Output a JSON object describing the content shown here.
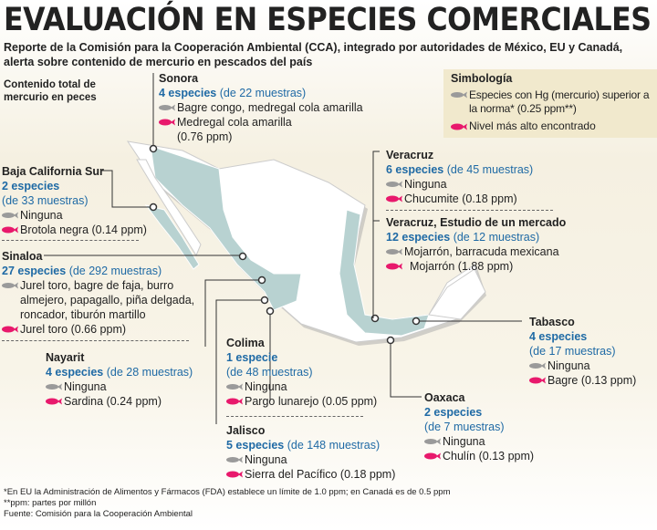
{
  "title": "EVALUACIÓN EN ESPECIES COMERCIALES",
  "subtitle": "Reporte de la Comisión para la Cooperación Ambiental (CCA), integrado por autoridades de México, EU y Canadá, alerta sobre contenido de mercurio en pescados del país",
  "section_label": "Contenido total de mercurio en peces",
  "legend": {
    "title": "Simbología",
    "gray": "Especies con Hg (mercurio) superior a la norma* (0.25 ppm**)",
    "pink": "Nivel más alto encontrado"
  },
  "colors": {
    "blue": "#1f6aa5",
    "pink": "#e8196c",
    "gray": "#9a9a9a",
    "map": "#b8d2d1"
  },
  "regions": {
    "sonora": {
      "name": "Sonora",
      "species": "4 especies",
      "samples": "(de 22 muestras)",
      "above": "Bagre congo, medregal cola amarilla",
      "highest": "Medregal cola amarilla",
      "highest2": "(0.76 ppm)"
    },
    "bcs": {
      "name": "Baja California Sur",
      "species": "2 especies",
      "samples": "(de 33 muestras)",
      "above": "Ninguna",
      "highest": "Brotola negra (0.14 ppm)"
    },
    "sinaloa": {
      "name": "Sinaloa",
      "species": "27 especies",
      "samples": "(de 292 muestras)",
      "above1": "Jurel toro, bagre de faja, burro",
      "above2": "almejero, papagallo, piña delgada,",
      "above3": "roncador, tiburón martillo",
      "highest": "Jurel toro (0.66 ppm)"
    },
    "nayarit": {
      "name": "Nayarit",
      "species": "4 especies",
      "samples": "(de 28 muestras)",
      "above": "Ninguna",
      "highest": "Sardina (0.24 ppm)"
    },
    "colima": {
      "name": "Colima",
      "species": "1 especie",
      "samples": "(de 48 muestras)",
      "above": "Ninguna",
      "highest": "Pargo lunarejo (0.05 ppm)"
    },
    "jalisco": {
      "name": "Jalisco",
      "species": "5 especies",
      "samples": "(de 148 muestras)",
      "above": "Ninguna",
      "highest": "Sierra del Pacífico (0.18 ppm)"
    },
    "veracruz": {
      "name": "Veracruz",
      "species": "6 especies",
      "samples": "(de 45 muestras)",
      "above": "Ninguna",
      "highest": "Chucumite (0.18 ppm)"
    },
    "veracruz_market": {
      "name": "Veracruz, Estudio de un mercado",
      "species": "12 especies",
      "samples": "(de 12 muestras)",
      "above": "Mojarrón, barracuda mexicana",
      "highest": "Mojarrón (1.88 ppm)"
    },
    "tabasco": {
      "name": "Tabasco",
      "species": "4 especies",
      "samples": "(de 17 muestras)",
      "above": "Ninguna",
      "highest": "Bagre (0.13 ppm)"
    },
    "oaxaca": {
      "name": "Oaxaca",
      "species": "2 especies",
      "samples": "(de 7 muestras)",
      "above": "Ninguna",
      "highest": "Chulín (0.13 ppm)"
    }
  },
  "footnotes": [
    "*En EU la Administración de Alimentos y Fármacos (FDA) establece un límite de 1.0 ppm; en Canadá es de 0.5 ppm",
    "**ppm: partes por millón",
    "Fuente: Comisión para la Cooperación Ambiental"
  ]
}
